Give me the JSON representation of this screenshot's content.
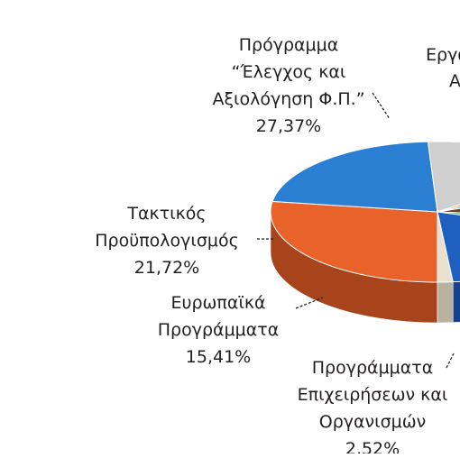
{
  "chart_data": {
    "type": "pie",
    "slices": [
      {
        "label_lines": [
          "Πρόγραμμα",
          "“Έλεγχος και",
          "Αξιολόγηση Φ.Π.”",
          "27,37%"
        ],
        "value": 27.37,
        "color": "#e8622a",
        "side": "#a8441c"
      },
      {
        "label_lines": [
          "Τακτικός",
          "Προϋπολογισμός",
          "21,72%"
        ],
        "value": 21.72,
        "color": "#2a7fd2",
        "side": "#1c5a99"
      },
      {
        "label_lines": [
          "Ευρωπαϊκά",
          "Προγράμματα",
          "15,41%"
        ],
        "value": 15.41,
        "color": "#cfcfcf",
        "side": "#8f8f8f"
      },
      {
        "label_lines": [
          "Προγράμματα",
          "Επιχειρήσεων και",
          "Οργανισμών",
          "2,52%"
        ],
        "value": 2.52,
        "color": "#f2a488",
        "side": "#b8735c"
      },
      {
        "label_lines": [],
        "value": 2.5,
        "color": "#7ec4e8",
        "side": "#5a9bbb"
      },
      {
        "label_lines": [],
        "value": 7.0,
        "color": "#6b3f2a",
        "side": "#4a2b1c"
      },
      {
        "label_lines": [],
        "value": 3.5,
        "color": "#3aa64a",
        "side": "#287534"
      },
      {
        "label_lines": [],
        "value": 18.5,
        "color": "#1f5fbf",
        "side": "#15428a"
      },
      {
        "label_lines": [],
        "value": 1.48,
        "color": "#e9e1cf",
        "side": "#b9b29f"
      }
    ],
    "clipped_labels": [
      {
        "text": "Εργα",
        "anchor_slice": 8
      },
      {
        "text": "Α",
        "anchor_slice": 8
      }
    ]
  }
}
